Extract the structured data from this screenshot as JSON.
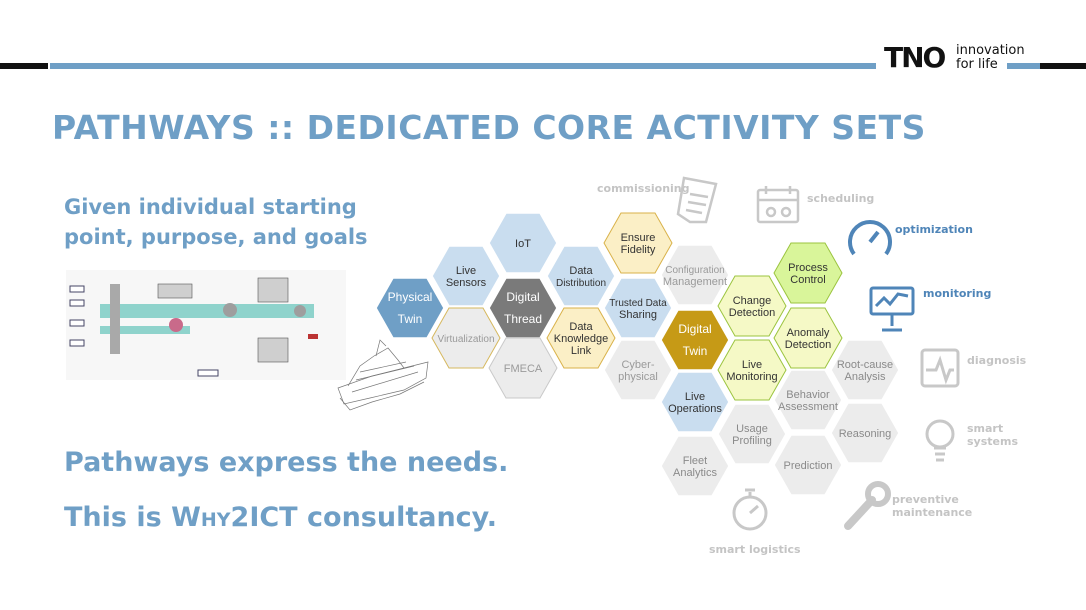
{
  "header": {
    "title": "PATHWAYS :: DEDICATED CORE ACTIVITY SETS",
    "logo_mark": "TNO",
    "logo_tagline_1": "innovation",
    "logo_tagline_2": "for life"
  },
  "intro": {
    "line1": "Given individual starting",
    "line2": "point, purpose, and goals"
  },
  "footer_text": {
    "line1": "Pathways express the needs.",
    "line2_prefix": "This is ",
    "line2_brand": "Why2ICT",
    "line2_suffix": " consultancy."
  },
  "hexagons": [
    {
      "id": "physical-twin",
      "l1": "Physical",
      "l2": "Twin"
    },
    {
      "id": "live-sensors",
      "l1": "Live",
      "l2": "Sensors"
    },
    {
      "id": "virtualization",
      "l1": "Virtualization",
      "l2": ""
    },
    {
      "id": "iot",
      "l1": "IoT",
      "l2": ""
    },
    {
      "id": "digital-thread",
      "l1": "Digital",
      "l2": "Thread"
    },
    {
      "id": "fmeca",
      "l1": "FMECA",
      "l2": ""
    },
    {
      "id": "data-distribution",
      "l1": "Data",
      "l2": "Distribution"
    },
    {
      "id": "data-knowledge-link",
      "l1": "Data",
      "l2": "Knowledge",
      "l3": "Link"
    },
    {
      "id": "ensure-fidelity",
      "l1": "Ensure",
      "l2": "Fidelity"
    },
    {
      "id": "trusted-data-sharing",
      "l1": "Trusted Data",
      "l2": "Sharing"
    },
    {
      "id": "cyber-physical",
      "l1": "Cyber-",
      "l2": "physical"
    },
    {
      "id": "configuration-management",
      "l1": "Configuration",
      "l2": "Management"
    },
    {
      "id": "digital-twin",
      "l1": "Digital",
      "l2": "Twin"
    },
    {
      "id": "live-operations",
      "l1": "Live",
      "l2": "Operations"
    },
    {
      "id": "fleet-analytics",
      "l1": "Fleet",
      "l2": "Analytics"
    },
    {
      "id": "change-detection",
      "l1": "Change",
      "l2": "Detection"
    },
    {
      "id": "live-monitoring",
      "l1": "Live",
      "l2": "Monitoring"
    },
    {
      "id": "usage-profiling",
      "l1": "Usage",
      "l2": "Profiling"
    },
    {
      "id": "process-control",
      "l1": "Process",
      "l2": "Control"
    },
    {
      "id": "anomaly-detection",
      "l1": "Anomaly",
      "l2": "Detection"
    },
    {
      "id": "behavior-assessment",
      "l1": "Behavior",
      "l2": "Assessment"
    },
    {
      "id": "prediction",
      "l1": "Prediction",
      "l2": ""
    },
    {
      "id": "root-cause-analysis",
      "l1": "Root-cause",
      "l2": "Analysis"
    },
    {
      "id": "reasoning",
      "l1": "Reasoning",
      "l2": ""
    }
  ],
  "icons": [
    {
      "id": "commissioning",
      "label": "commissioning"
    },
    {
      "id": "scheduling",
      "label": "scheduling"
    },
    {
      "id": "optimization",
      "label": "optimization"
    },
    {
      "id": "monitoring",
      "label": "monitoring"
    },
    {
      "id": "diagnosis",
      "label": "diagnosis"
    },
    {
      "id": "smart-systems",
      "l1": "smart",
      "l2": "systems"
    },
    {
      "id": "preventive-maintenance",
      "l1": "preventive",
      "l2": "maintenance"
    },
    {
      "id": "smart-logistics",
      "label": "smart logistics"
    }
  ],
  "colors": {
    "title_blue": "#6f9fc6",
    "hex_blue": "#c9ddef",
    "hex_dark_blue": "#6f9fc6",
    "hex_dark_gray": "#7a7a7a",
    "hex_gold": "#c69a16",
    "hex_yellow_light": "#fbefc6",
    "hex_green_light": "#f5f9c6",
    "hex_green": "#d9f59a",
    "hex_gray": "#ececec",
    "icon_gray": "#c8c8c8"
  }
}
